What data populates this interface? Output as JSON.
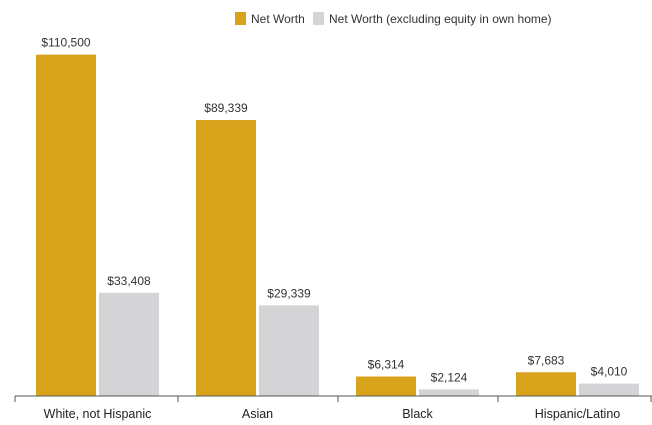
{
  "chart_data": {
    "type": "bar",
    "categories": [
      "White, not Hispanic",
      "Asian",
      "Black",
      "Hispanic/Latino"
    ],
    "series": [
      {
        "name": "Net Worth",
        "color": "#d9a21b",
        "values": [
          110500,
          89339,
          6314,
          7683
        ],
        "value_labels": [
          "$110,500",
          "$89,339",
          "$6,314",
          "$7,683"
        ]
      },
      {
        "name": "Net Worth (excluding equity in own home)",
        "color": "#d4d4d6",
        "values": [
          33408,
          29339,
          2124,
          4010
        ],
        "value_labels": [
          "$33,408",
          "$29,339",
          "$2,124",
          "$4,010"
        ]
      }
    ],
    "ylim": [
      0,
      112000
    ],
    "grid": false,
    "legend_position": "top-center",
    "title": "",
    "xlabel": "",
    "ylabel": ""
  }
}
